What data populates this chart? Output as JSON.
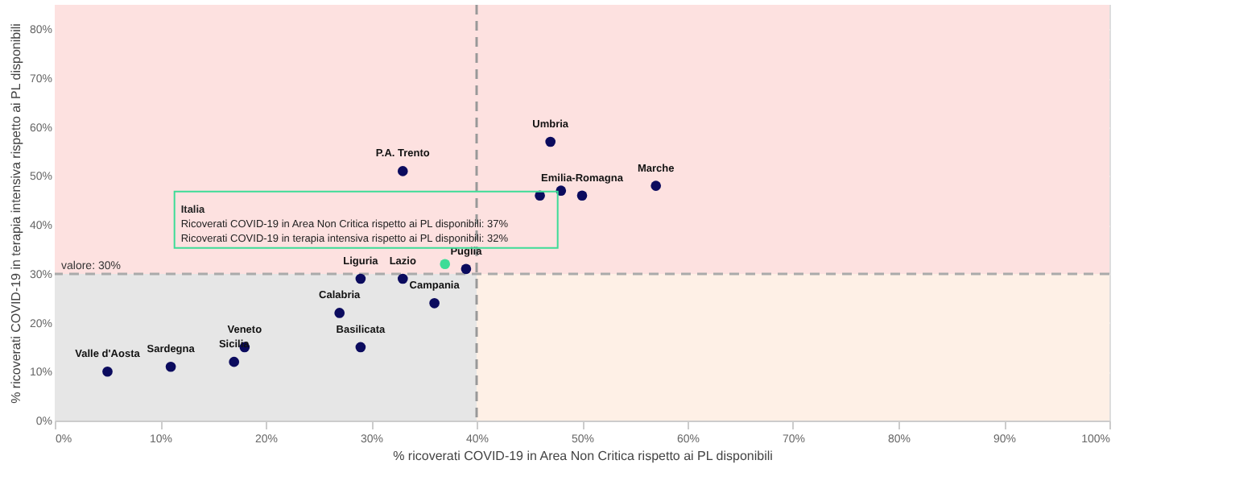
{
  "chart_data": {
    "type": "scatter",
    "xlabel": "% ricoverati COVID-19 in Area Non Critica rispetto ai PL disponibili",
    "ylabel": "% ricoverati COVID-19 in terapia intensiva rispetto ai PL disponibili",
    "xlim": [
      0,
      100
    ],
    "ylim": [
      0,
      85
    ],
    "xticks": [
      {
        "value": 0,
        "label": "0%"
      },
      {
        "value": 10,
        "label": "10%"
      },
      {
        "value": 20,
        "label": "20%"
      },
      {
        "value": 30,
        "label": "30%"
      },
      {
        "value": 40,
        "label": "40%"
      },
      {
        "value": 50,
        "label": "50%"
      },
      {
        "value": 60,
        "label": "60%"
      },
      {
        "value": 70,
        "label": "70%"
      },
      {
        "value": 80,
        "label": "80%"
      },
      {
        "value": 90,
        "label": "90%"
      },
      {
        "value": 100,
        "label": "100%"
      }
    ],
    "yticks": [
      {
        "value": 0,
        "label": "0%"
      },
      {
        "value": 10,
        "label": "10%"
      },
      {
        "value": 20,
        "label": "20%"
      },
      {
        "value": 30,
        "label": "30%"
      },
      {
        "value": 40,
        "label": "40%"
      },
      {
        "value": 50,
        "label": "50%"
      },
      {
        "value": 60,
        "label": "60%"
      },
      {
        "value": 70,
        "label": "70%"
      },
      {
        "value": 80,
        "label": "80%"
      }
    ],
    "grid": "y",
    "marker": "circle",
    "series": [
      {
        "color": "#0b0b5e",
        "x": [
          47,
          33,
          57,
          46,
          48,
          50,
          39,
          29,
          33,
          36,
          27,
          29,
          18,
          17,
          11,
          5
        ],
        "values": [
          57,
          51,
          48,
          46,
          47,
          46,
          31,
          29,
          29,
          24,
          22,
          15,
          15,
          12,
          11,
          10
        ]
      },
      {
        "color": "#3ddc97",
        "x": [
          37
        ],
        "values": [
          32
        ]
      }
    ],
    "bands": [
      {
        "axis": "y",
        "from": 0,
        "to": 30,
        "color": "#fef0e6"
      },
      {
        "axis": "y",
        "from": 30,
        "to": 85,
        "color": "#fde1e0"
      },
      {
        "axis": "x",
        "from": 0,
        "to": 40,
        "color": "#e6e6e6"
      }
    ],
    "ref_lines": [
      {
        "axis": "x",
        "value": 40,
        "color": "#999999",
        "line_style": "dashed"
      },
      {
        "axis": "y",
        "value": 30,
        "label": "valore: 30%",
        "color": "#aaaaaa",
        "line_style": "dashed"
      }
    ],
    "annotations": [
      {
        "text": "Umbria",
        "x": 47,
        "y": 57
      },
      {
        "text": "P.A. Trento",
        "x": 33,
        "y": 51
      },
      {
        "text": "Marche",
        "x": 57,
        "y": 48
      },
      {
        "text": "Emilia-Romagna",
        "x": 50,
        "y": 46
      },
      {
        "text": "Puglia",
        "x": 39,
        "y": 31
      },
      {
        "text": "Liguria",
        "x": 29,
        "y": 29
      },
      {
        "text": "Lazio",
        "x": 33,
        "y": 29
      },
      {
        "text": "Campania",
        "x": 36,
        "y": 24
      },
      {
        "text": "Calabria",
        "x": 27,
        "y": 22
      },
      {
        "text": "Basilicata",
        "x": 29,
        "y": 15
      },
      {
        "text": "Veneto",
        "x": 18,
        "y": 15
      },
      {
        "text": "Sicilia",
        "x": 17,
        "y": 12
      },
      {
        "text": "Sardegna",
        "x": 11,
        "y": 11
      },
      {
        "text": "Valle d'Aosta",
        "x": 5,
        "y": 10
      },
      {
        "text": "Italia\nRicoverati COVID-19 in Area Non Critica rispetto ai PL disponibili: 37%\nRicoverati COVID-19 in terapia intensiva rispetto ai PL disponibili: 32%",
        "x": 37,
        "y": 32
      }
    ]
  }
}
